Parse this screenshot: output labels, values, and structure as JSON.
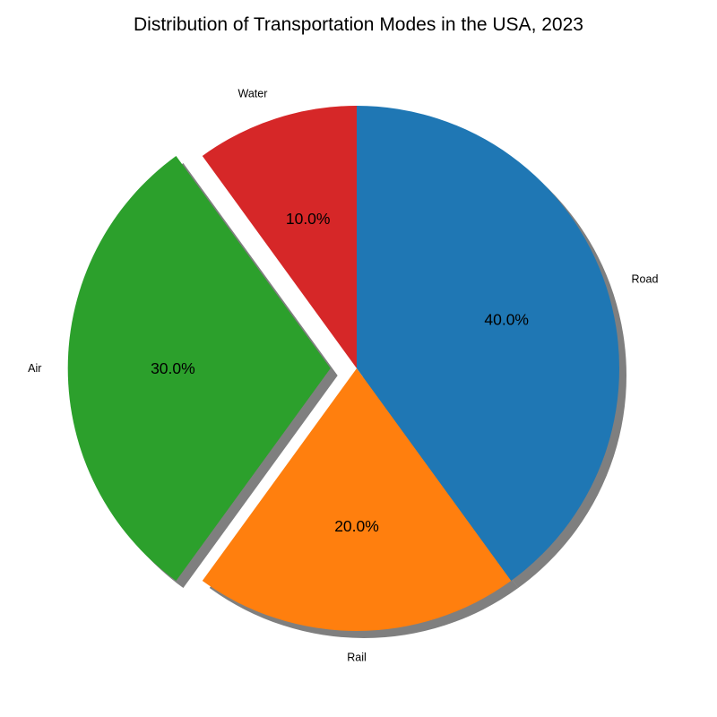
{
  "chart_data": {
    "type": "pie",
    "title": "Distribution of Transportation Modes in the USA, 2023",
    "categories": [
      "Road",
      "Rail",
      "Air",
      "Water"
    ],
    "values": [
      40,
      20,
      30,
      10
    ],
    "percent_labels": [
      "40.0%",
      "20.0%",
      "30.0%",
      "10.0%"
    ],
    "colors": [
      "#1f77b4",
      "#ff7f0e",
      "#2ca02c",
      "#d62728"
    ],
    "explode": [
      0,
      0,
      0.1,
      0
    ],
    "start_angle_deg": 90,
    "direction": "clockwise",
    "shadow": true
  }
}
